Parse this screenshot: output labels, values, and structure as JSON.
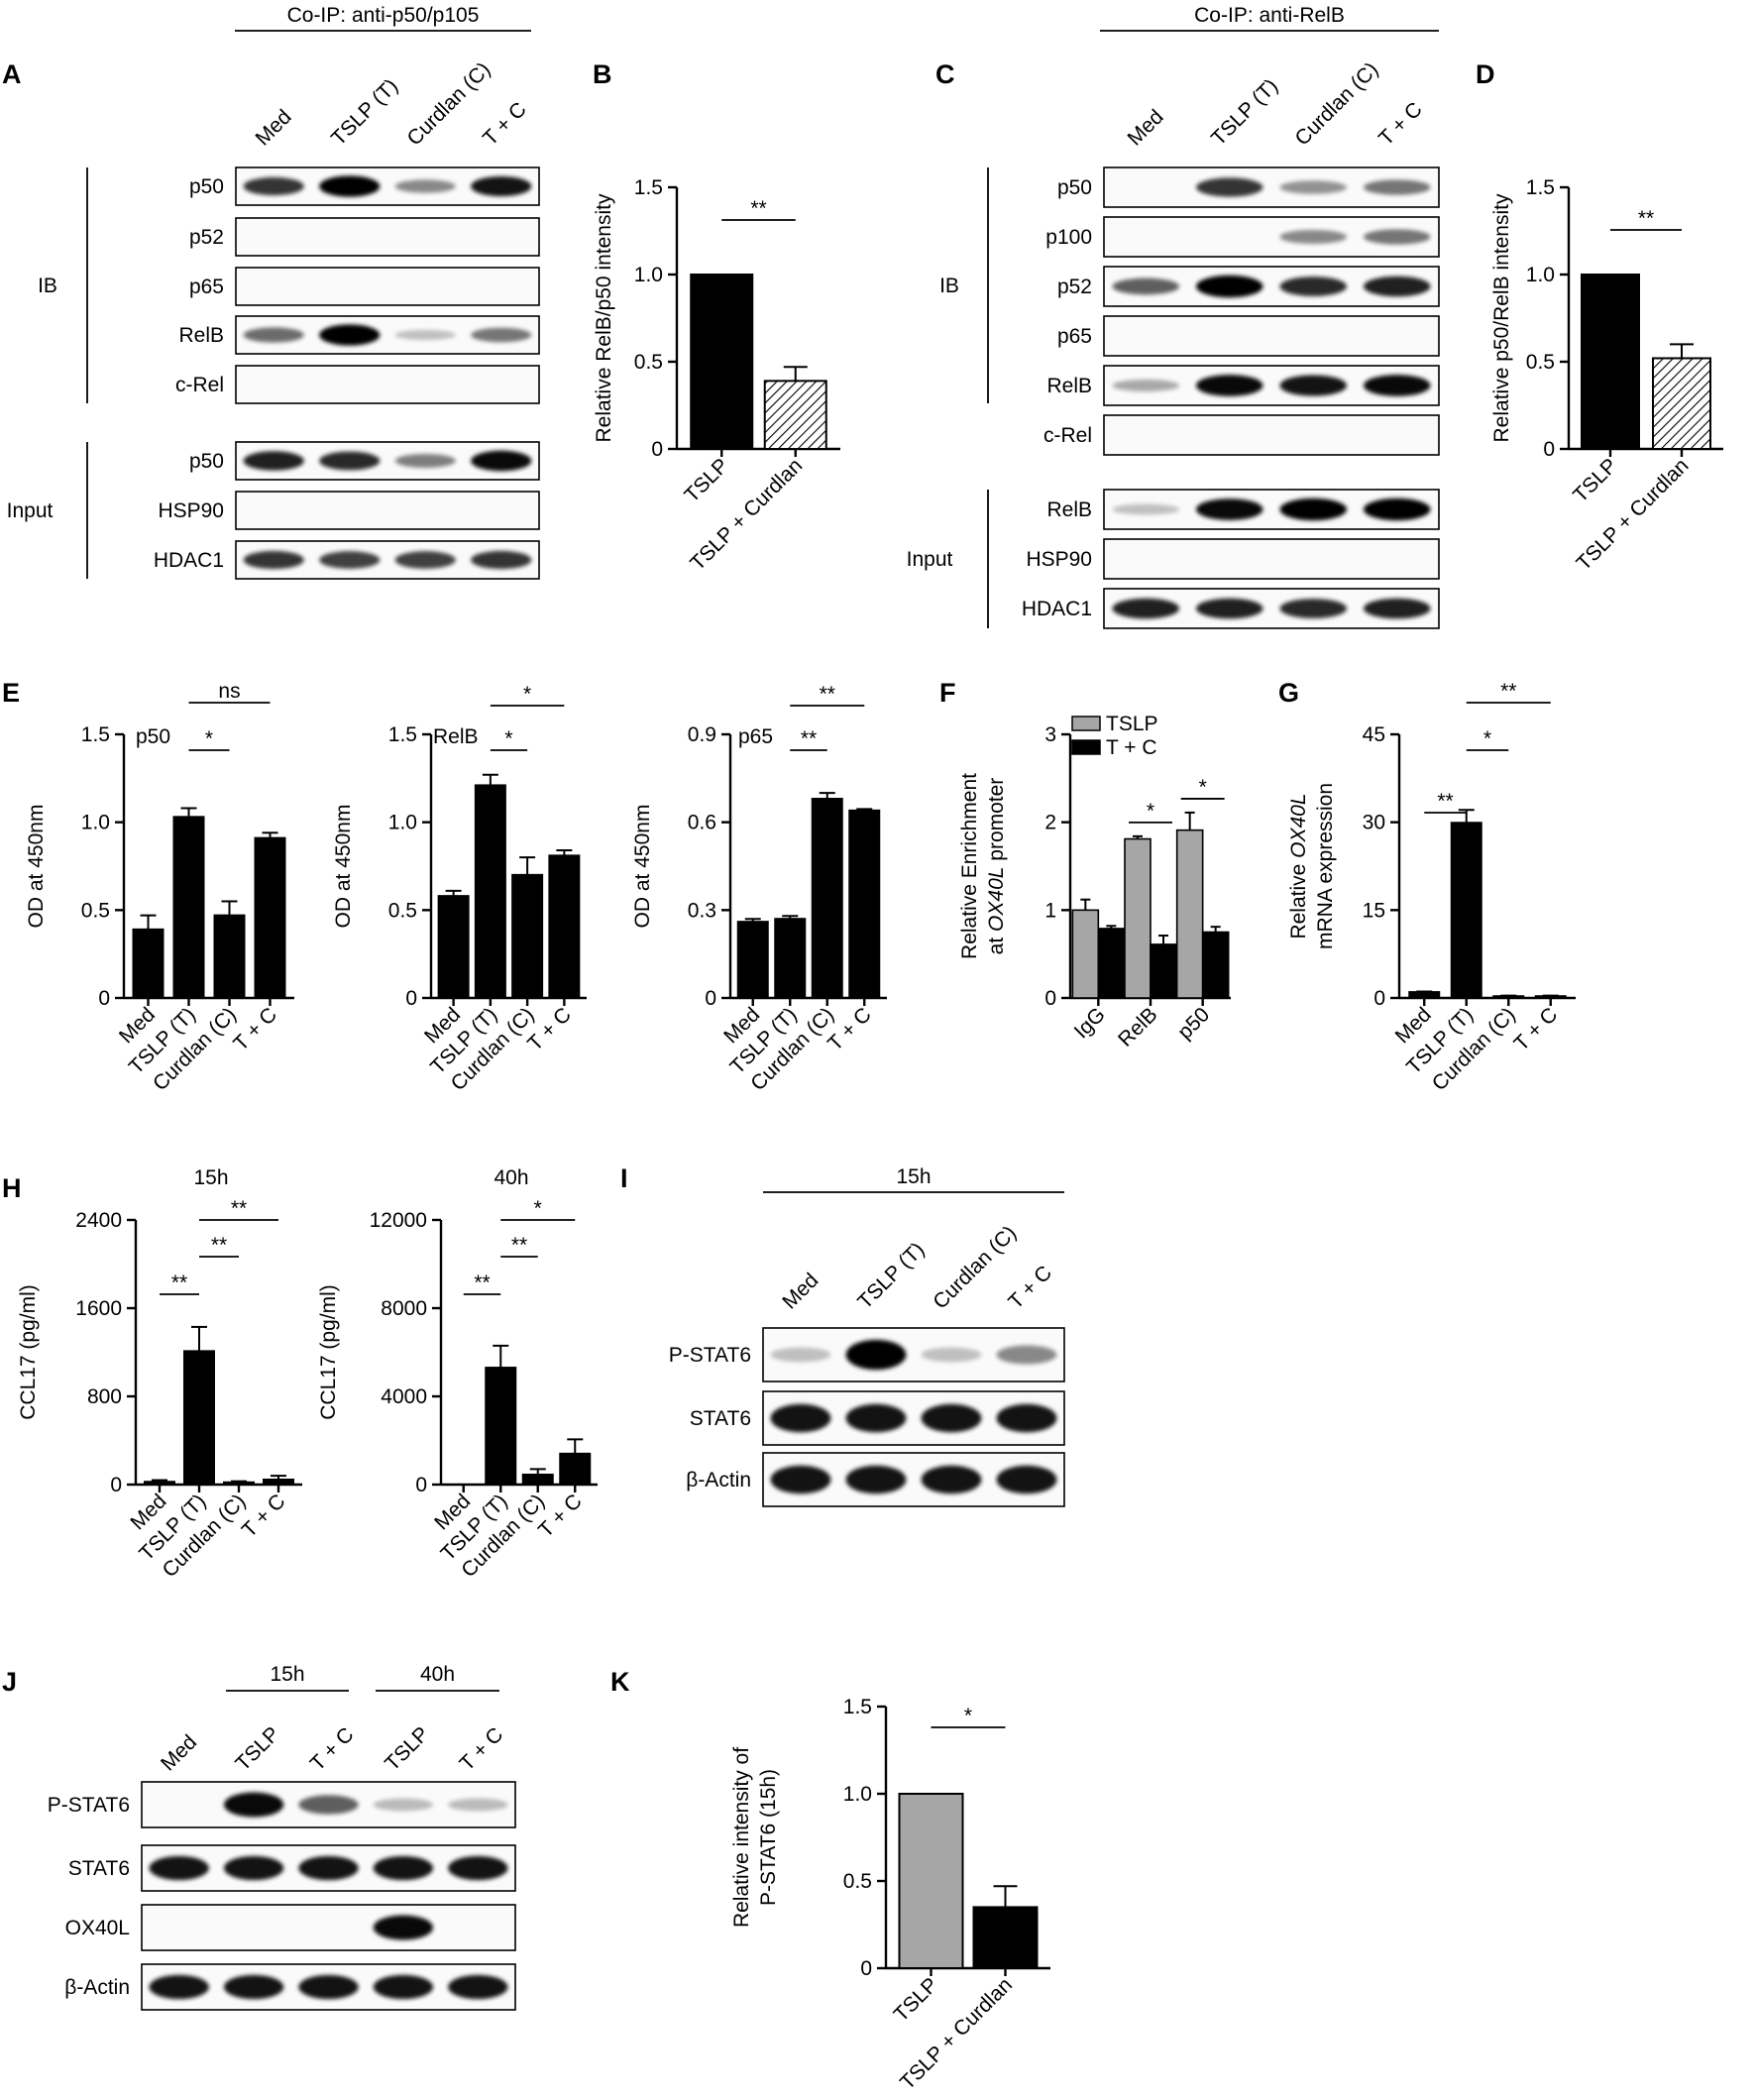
{
  "figure": {
    "panel_letters": [
      "A",
      "B",
      "C",
      "D",
      "E",
      "F",
      "G",
      "H",
      "I",
      "J",
      "K"
    ]
  },
  "conditions": [
    "Med",
    "TSLP (T)",
    "Curdlan (C)",
    "T + C"
  ],
  "blots": {
    "A": {
      "header": "Co-IP: anti-p50/p105",
      "lanes": [
        "Med",
        "TSLP (T)",
        "Curdlan (C)",
        "T + C"
      ],
      "group_labels": [
        "IB",
        "Input"
      ],
      "rows": [
        {
          "label": "p50",
          "group": "IB",
          "bands": [
            0.75,
            1.0,
            0.35,
            0.9
          ]
        },
        {
          "label": "p52",
          "group": "IB",
          "bands": [
            0,
            0,
            0,
            0
          ]
        },
        {
          "label": "p65",
          "group": "IB",
          "bands": [
            0,
            0,
            0,
            0
          ]
        },
        {
          "label": "RelB",
          "group": "IB",
          "bands": [
            0.5,
            1.0,
            0.1,
            0.45
          ]
        },
        {
          "label": "c-Rel",
          "group": "IB",
          "bands": [
            0,
            0,
            0,
            0
          ]
        },
        {
          "label": "p50",
          "group": "Input",
          "bands": [
            0.85,
            0.8,
            0.4,
            0.95
          ]
        },
        {
          "label": "HSP90",
          "group": "Input",
          "bands": [
            0,
            0,
            0,
            0
          ]
        },
        {
          "label": "HDAC1",
          "group": "Input",
          "bands": [
            0.75,
            0.7,
            0.7,
            0.75
          ]
        }
      ]
    },
    "C": {
      "header": "Co-IP: anti-RelB",
      "lanes": [
        "Med",
        "TSLP (T)",
        "Curdlan (C)",
        "T + C"
      ],
      "group_labels": [
        "IB",
        "Input"
      ],
      "rows": [
        {
          "label": "p50",
          "group": "IB",
          "bands": [
            0,
            0.75,
            0.3,
            0.45
          ]
        },
        {
          "label": "p100",
          "group": "IB",
          "bands": [
            0,
            0,
            0.35,
            0.45
          ]
        },
        {
          "label": "p52",
          "group": "IB",
          "bands": [
            0.55,
            1.0,
            0.8,
            0.85
          ]
        },
        {
          "label": "p65",
          "group": "IB",
          "bands": [
            0,
            0,
            0,
            0
          ]
        },
        {
          "label": "RelB",
          "group": "IB",
          "bands": [
            0.2,
            0.95,
            0.9,
            0.95
          ]
        },
        {
          "label": "c-Rel",
          "group": "IB",
          "bands": [
            0,
            0,
            0,
            0
          ]
        },
        {
          "label": "RelB",
          "group": "Input",
          "bands": [
            0.1,
            0.95,
            1.0,
            1.0
          ]
        },
        {
          "label": "HSP90",
          "group": "Input",
          "bands": [
            0,
            0,
            0,
            0
          ]
        },
        {
          "label": "HDAC1",
          "group": "Input",
          "bands": [
            0.85,
            0.85,
            0.8,
            0.85
          ]
        }
      ]
    },
    "I": {
      "header": "15h",
      "lanes": [
        "Med",
        "TSLP (T)",
        "Curdlan (C)",
        "T + C"
      ],
      "rows": [
        {
          "label": "P-STAT6",
          "bands": [
            0.1,
            1.0,
            0.1,
            0.35
          ]
        },
        {
          "label": "STAT6",
          "bands": [
            0.9,
            0.9,
            0.9,
            0.9
          ]
        },
        {
          "label": "β-Actin",
          "bands": [
            0.9,
            0.9,
            0.9,
            0.9
          ]
        }
      ]
    },
    "J": {
      "time_headers": [
        "15h",
        "40h"
      ],
      "lanes": [
        "Med",
        "TSLP",
        "T + C",
        "TSLP",
        "T + C"
      ],
      "rows": [
        {
          "label": "P-STAT6",
          "bands": [
            0,
            0.95,
            0.55,
            0.12,
            0.12
          ]
        },
        {
          "label": "STAT6",
          "bands": [
            0.9,
            0.9,
            0.9,
            0.9,
            0.9
          ]
        },
        {
          "label": "OX40L",
          "bands": [
            0,
            0,
            0,
            0.95,
            0
          ]
        },
        {
          "label": "β-Actin",
          "bands": [
            0.9,
            0.9,
            0.9,
            0.9,
            0.9
          ]
        }
      ]
    }
  },
  "chart_data": [
    {
      "id": "B",
      "type": "bar",
      "categories": [
        "TSLP",
        "TSLP + Curdlan"
      ],
      "values": [
        1.0,
        0.39
      ],
      "errors": [
        0,
        0.08
      ],
      "ylabel": "Relative RelB/p50 intensity",
      "ylim": [
        0,
        1.5
      ],
      "yticks": [
        "0",
        "0.5",
        "1.0",
        "1.5"
      ],
      "significance": [
        {
          "from": 0,
          "to": 1,
          "label": "**"
        }
      ]
    },
    {
      "id": "D",
      "type": "bar",
      "categories": [
        "TSLP",
        "TSLP + Curdlan"
      ],
      "values": [
        1.0,
        0.52
      ],
      "errors": [
        0,
        0.08
      ],
      "ylabel": "Relative p50/RelB intensity",
      "ylim": [
        0,
        1.5
      ],
      "yticks": [
        "0",
        "0.5",
        "1.0",
        "1.5"
      ],
      "significance": [
        {
          "from": 0,
          "to": 1,
          "label": "**"
        }
      ]
    },
    {
      "id": "E1",
      "type": "bar",
      "title": "p50",
      "categories": [
        "Med",
        "TSLP (T)",
        "Curdlan (C)",
        "T + C"
      ],
      "values": [
        0.39,
        1.03,
        0.47,
        0.91
      ],
      "errors": [
        0.08,
        0.05,
        0.08,
        0.03
      ],
      "ylabel": "OD at 450nm",
      "ylim": [
        0,
        1.5
      ],
      "yticks": [
        "0",
        "0.5",
        "1.0",
        "1.5"
      ],
      "significance": [
        {
          "from": 1,
          "to": 2,
          "label": "*"
        },
        {
          "from": 1,
          "to": 3,
          "label": "ns"
        }
      ]
    },
    {
      "id": "E2",
      "type": "bar",
      "title": "RelB",
      "categories": [
        "Med",
        "TSLP (T)",
        "Curdlan (C)",
        "T + C"
      ],
      "values": [
        0.58,
        1.21,
        0.7,
        0.81
      ],
      "errors": [
        0.03,
        0.06,
        0.1,
        0.03
      ],
      "ylabel": "OD at 450nm",
      "ylim": [
        0,
        1.5
      ],
      "yticks": [
        "0",
        "0.5",
        "1.0",
        "1.5"
      ],
      "significance": [
        {
          "from": 1,
          "to": 2,
          "label": "*"
        },
        {
          "from": 1,
          "to": 3,
          "label": "*"
        }
      ]
    },
    {
      "id": "E3",
      "type": "bar",
      "title": "p65",
      "categories": [
        "Med",
        "TSLP (T)",
        "Curdlan (C)",
        "T + C"
      ],
      "values": [
        0.26,
        0.27,
        0.68,
        0.64
      ],
      "errors": [
        0.01,
        0.01,
        0.02,
        0.005
      ],
      "ylabel": "OD at 450nm",
      "ylim": [
        0,
        0.9
      ],
      "yticks": [
        "0",
        "0.3",
        "0.6",
        "0.9"
      ],
      "significance": [
        {
          "from": 1,
          "to": 2,
          "label": "**"
        },
        {
          "from": 1,
          "to": 3,
          "label": "**"
        }
      ]
    },
    {
      "id": "F",
      "type": "bar",
      "categories": [
        "IgG",
        "RelB",
        "p50"
      ],
      "series": [
        {
          "name": "TSLP",
          "values": [
            1.0,
            1.81,
            1.91
          ],
          "errors": [
            0.12,
            0.03,
            0.2
          ]
        },
        {
          "name": "T + C",
          "values": [
            0.79,
            0.61,
            0.75
          ],
          "errors": [
            0.03,
            0.1,
            0.06
          ]
        }
      ],
      "ylabel": "Relative Enrichment at OX40L promoter",
      "ylim": [
        0,
        3
      ],
      "yticks": [
        "0",
        "1",
        "2",
        "3"
      ],
      "legend": "top-left",
      "significance": [
        {
          "category": 1,
          "label": "*"
        },
        {
          "category": 2,
          "label": "*"
        }
      ]
    },
    {
      "id": "G",
      "type": "bar",
      "categories": [
        "Med",
        "TSLP (T)",
        "Curdlan (C)",
        "T + C"
      ],
      "values": [
        1.0,
        29.9,
        0.3,
        0.3
      ],
      "errors": [
        0.1,
        2.2,
        0.1,
        0.1
      ],
      "ylabel": "Relative OX40L mRNA expression",
      "ylim": [
        0,
        45
      ],
      "yticks": [
        "0",
        "15",
        "30",
        "45"
      ],
      "significance": [
        {
          "from": 0,
          "to": 1,
          "label": "**"
        },
        {
          "from": 1,
          "to": 2,
          "label": "*"
        },
        {
          "from": 1,
          "to": 3,
          "label": "**"
        }
      ]
    },
    {
      "id": "H1",
      "type": "bar",
      "title": "15h",
      "categories": [
        "Med",
        "TSLP (T)",
        "Curdlan (C)",
        "T + C"
      ],
      "values": [
        25,
        1210,
        20,
        45
      ],
      "errors": [
        15,
        220,
        10,
        35
      ],
      "ylabel": "CCL17 (pg/ml)",
      "ylim": [
        0,
        2400
      ],
      "yticks": [
        "0",
        "800",
        "1600",
        "2400"
      ],
      "significance": [
        {
          "from": 0,
          "to": 1,
          "label": "**"
        },
        {
          "from": 1,
          "to": 2,
          "label": "**"
        },
        {
          "from": 1,
          "to": 3,
          "label": "**"
        }
      ]
    },
    {
      "id": "H2",
      "type": "bar",
      "title": "40h",
      "categories": [
        "Med",
        "TSLP (T)",
        "Curdlan (C)",
        "T + C"
      ],
      "values": [
        0,
        5300,
        450,
        1400
      ],
      "errors": [
        0,
        1000,
        250,
        650
      ],
      "ylabel": "CCL17 (pg/ml)",
      "ylim": [
        0,
        12000
      ],
      "yticks": [
        "0",
        "4000",
        "8000",
        "12000"
      ],
      "significance": [
        {
          "from": 0,
          "to": 1,
          "label": "**"
        },
        {
          "from": 1,
          "to": 2,
          "label": "**"
        },
        {
          "from": 1,
          "to": 3,
          "label": "*"
        }
      ]
    },
    {
      "id": "K",
      "type": "bar",
      "categories": [
        "TSLP",
        "TSLP + Curdlan"
      ],
      "values": [
        1.0,
        0.35
      ],
      "errors": [
        0,
        0.12
      ],
      "ylabel": "Relative intensity of P-STAT6 (15h)",
      "ylim": [
        0,
        1.5
      ],
      "yticks": [
        "0",
        "0.5",
        "1.0",
        "1.5"
      ],
      "significance": [
        {
          "from": 0,
          "to": 1,
          "label": "*"
        }
      ]
    }
  ],
  "colors": {
    "black": "#000000",
    "gray": "#a6a6a6",
    "hatch": "#000000"
  }
}
